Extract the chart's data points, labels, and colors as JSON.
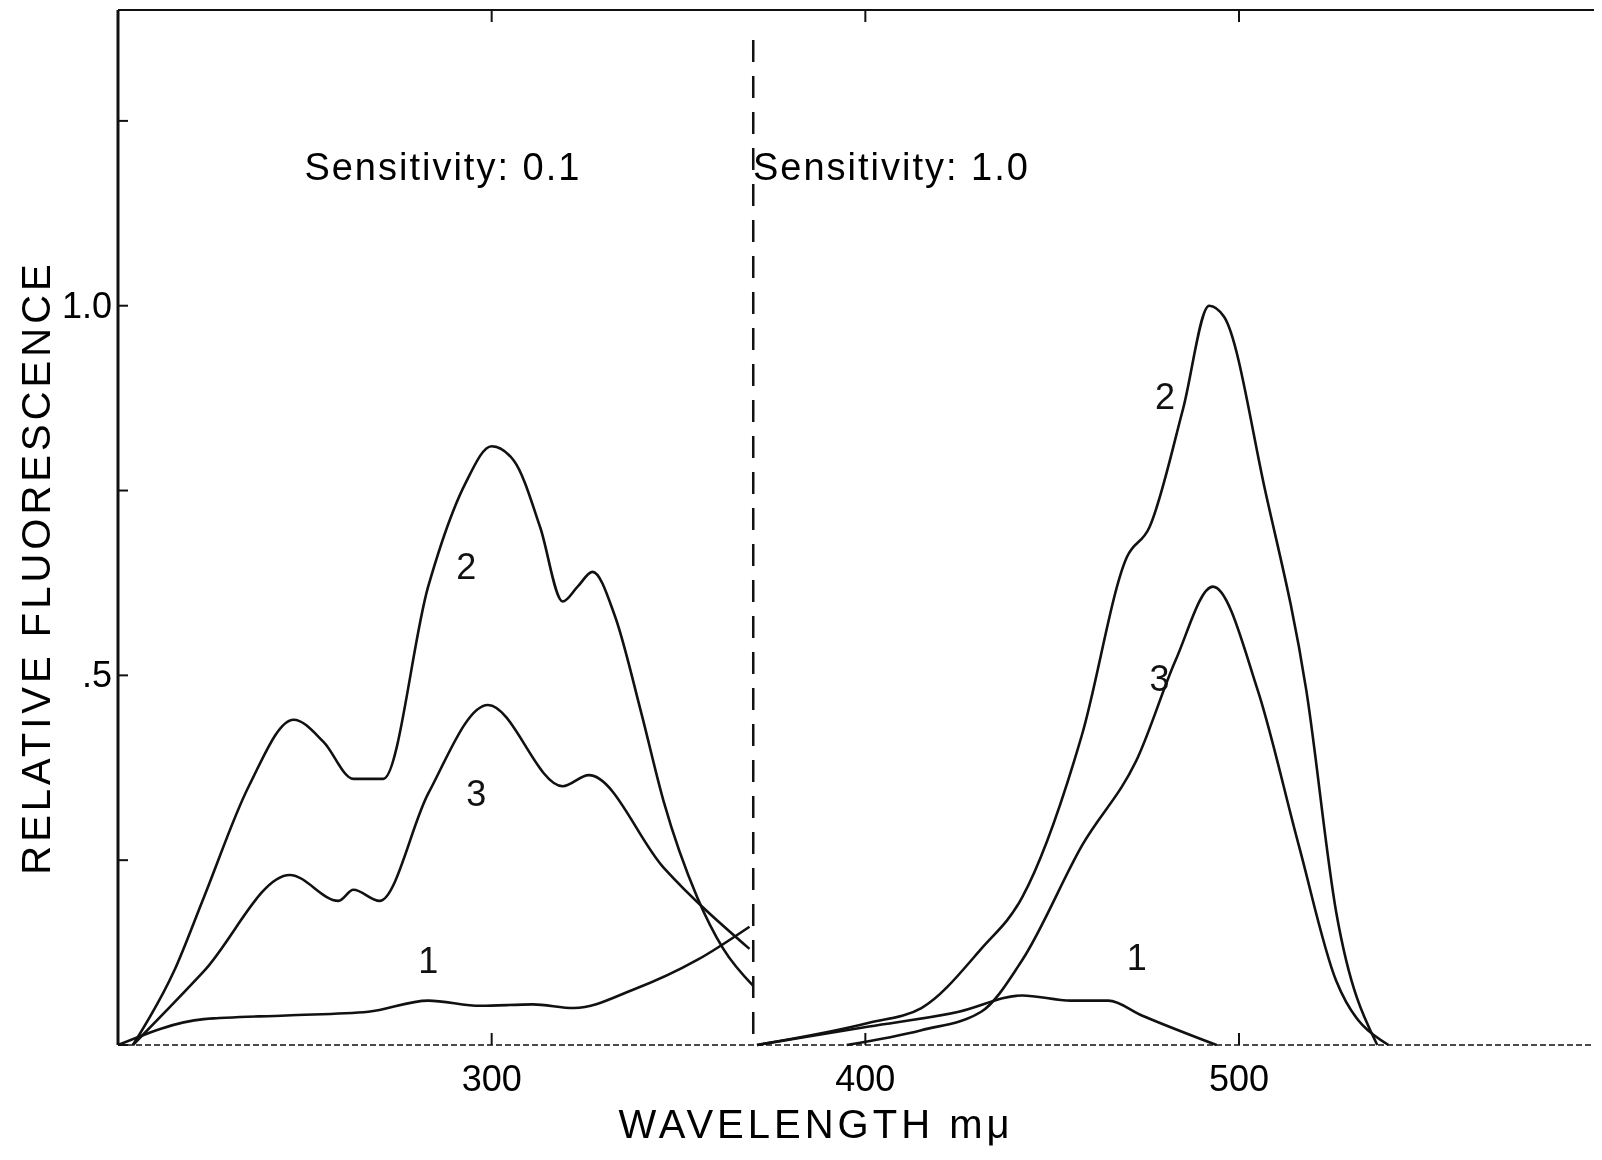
{
  "chart_data": {
    "type": "line",
    "xlabel": "WAVELENGTH   mμ",
    "ylabel": "RELATIVE FLUORESCENCE",
    "xlim": [
      200,
      595
    ],
    "xticks": [
      300,
      400,
      500
    ],
    "ylim": [
      0,
      1.4
    ],
    "yticks": [
      {
        "value": 0,
        "label": null
      },
      {
        "value": 0.25,
        "label": null
      },
      {
        "value": 0.5,
        "label": ".5"
      },
      {
        "value": 0.75,
        "label": null
      },
      {
        "value": 1,
        "label": "1.0"
      },
      {
        "value": 1.25,
        "label": null
      }
    ],
    "grid": false,
    "marker": "none",
    "line_style": "solid",
    "series": [
      {
        "name": "2",
        "color": "#111111",
        "x": [
          204,
          215,
          223,
          235,
          247,
          255,
          263,
          271,
          283,
          293,
          300,
          306,
          313,
          319,
          323,
          327,
          333,
          340,
          346,
          355,
          362,
          370
        ],
        "values": [
          0,
          0.1,
          0.2,
          0.35,
          0.44,
          0.41,
          0.36,
          0.36,
          0.62,
          0.76,
          0.81,
          0.79,
          0.7,
          0.6,
          0.62,
          0.64,
          0.58,
          0.45,
          0.33,
          0.2,
          0.13,
          0.08
        ]
      },
      {
        "name": "3",
        "color": "#111111",
        "x": [
          204,
          223,
          246,
          259,
          263,
          270,
          283,
          299,
          319,
          326,
          346,
          369
        ],
        "values": [
          0,
          0.1,
          0.23,
          0.195,
          0.21,
          0.195,
          0.34,
          0.46,
          0.35,
          0.365,
          0.24,
          0.13
        ]
      },
      {
        "name": "1",
        "color": "#111111",
        "x": [
          200,
          223,
          245,
          267,
          283,
          297,
          311,
          322,
          338,
          355,
          369
        ],
        "values": [
          0,
          0.035,
          0.04,
          0.045,
          0.06,
          0.053,
          0.055,
          0.05,
          0.075,
          0.115,
          0.16
        ]
      },
      {
        "name": "2",
        "color": "#111111",
        "x": [
          371,
          401,
          415,
          431,
          442,
          458,
          470,
          476,
          485,
          492,
          496,
          507,
          518,
          526,
          537
        ],
        "values": [
          0,
          0.03,
          0.05,
          0.13,
          0.2,
          0.42,
          0.66,
          0.7,
          0.86,
          1.0,
          0.985,
          0.75,
          0.48,
          0.18,
          0
        ]
      },
      {
        "name": "3",
        "color": "#111111",
        "x": [
          395,
          415,
          431,
          442,
          458,
          473,
          483,
          493,
          505,
          516,
          526,
          540
        ],
        "values": [
          0,
          0.02,
          0.045,
          0.115,
          0.27,
          0.39,
          0.52,
          0.62,
          0.48,
          0.27,
          0.087,
          0
        ]
      },
      {
        "name": "1",
        "color": "#111111",
        "x": [
          371,
          401,
          425,
          442,
          455,
          465,
          474,
          494
        ],
        "values": [
          0,
          0.025,
          0.045,
          0.067,
          0.06,
          0.06,
          0.04,
          0
        ]
      }
    ],
    "ref_lines": [
      {
        "axis": "x",
        "value": 370,
        "line_style": "dashed",
        "color": "#111111"
      }
    ],
    "annotations": [
      "Sensitivity: 0.1",
      "Sensitivity: 1.0"
    ]
  }
}
